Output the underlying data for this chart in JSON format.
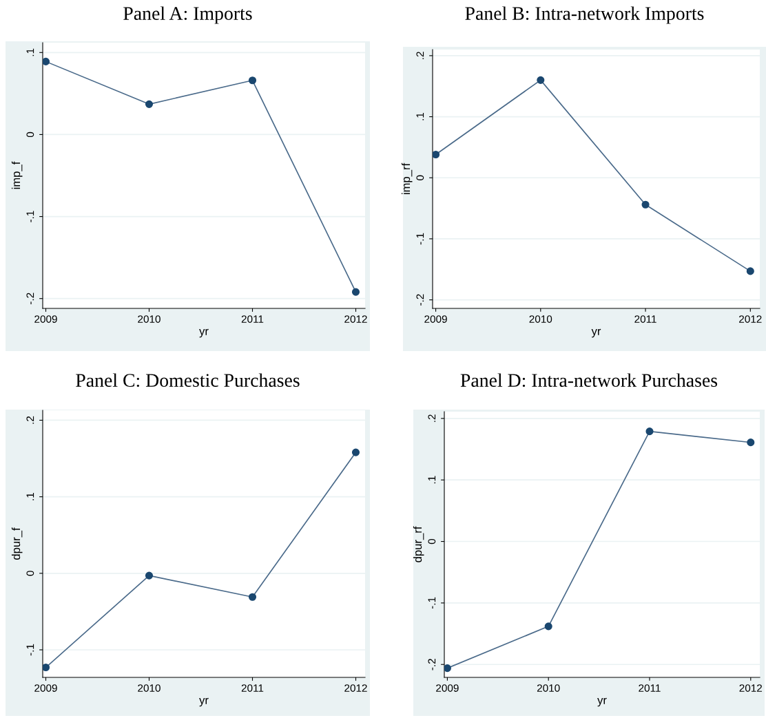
{
  "chart_data": [
    {
      "type": "line",
      "title": "Panel A: Imports",
      "xlabel": "yr",
      "ylabel": "imp_f",
      "x": [
        2009,
        2010,
        2011,
        2012
      ],
      "values": [
        0.089,
        0.037,
        0.066,
        -0.192
      ],
      "color": "#1a476f",
      "marker": "circle",
      "line_style": "solid",
      "grid": "y",
      "xlim": [
        2008.97,
        2012.09
      ],
      "ylim": [
        -0.212,
        0.112
      ],
      "xticks": [
        2009,
        2010,
        2011,
        2012
      ],
      "yticks": [
        {
          "value": -0.2,
          "label": "-.2"
        },
        {
          "value": -0.1,
          "label": "-.1"
        },
        0,
        {
          "value": 0.1,
          "label": ".1"
        }
      ]
    },
    {
      "type": "line",
      "title": "Panel B: Intra-network Imports",
      "xlabel": "yr",
      "ylabel": "imp_rf",
      "x": [
        2009,
        2010,
        2011,
        2012
      ],
      "values": [
        0.038,
        0.16,
        -0.044,
        -0.153
      ],
      "color": "#1a476f",
      "marker": "circle",
      "line_style": "solid",
      "grid": "y",
      "xlim": [
        2008.97,
        2012.09
      ],
      "ylim": [
        -0.214,
        0.21
      ],
      "xticks": [
        2009,
        2010,
        2011,
        2012
      ],
      "yticks": [
        {
          "value": -0.2,
          "label": "-.2"
        },
        {
          "value": -0.1,
          "label": "-.1"
        },
        0,
        {
          "value": 0.1,
          "label": ".1"
        },
        {
          "value": 0.2,
          "label": ".2"
        }
      ]
    },
    {
      "type": "line",
      "title": "Panel C: Domestic Purchases",
      "xlabel": "yr",
      "ylabel": "dpur_f",
      "x": [
        2009,
        2010,
        2011,
        2012
      ],
      "values": [
        -0.123,
        -0.003,
        -0.031,
        0.158
      ],
      "color": "#1a476f",
      "marker": "circle",
      "line_style": "solid",
      "grid": "y",
      "xlim": [
        2008.97,
        2012.09
      ],
      "ylim": [
        -0.136,
        0.213
      ],
      "xticks": [
        2009,
        2010,
        2011,
        2012
      ],
      "yticks": [
        {
          "value": -0.1,
          "label": "-.1"
        },
        0,
        {
          "value": 0.1,
          "label": ".1"
        },
        {
          "value": 0.2,
          "label": ".2"
        }
      ]
    },
    {
      "type": "line",
      "title": "Panel D: Intra-network Purchases",
      "xlabel": "yr",
      "ylabel": "dpur_rf",
      "x": [
        2009,
        2010,
        2011,
        2012
      ],
      "values": [
        -0.206,
        -0.138,
        0.179,
        0.161
      ],
      "color": "#1a476f",
      "marker": "circle",
      "line_style": "solid",
      "grid": "y",
      "xlim": [
        2008.97,
        2012.09
      ],
      "ylim": [
        -0.221,
        0.211
      ],
      "xticks": [
        2009,
        2010,
        2011,
        2012
      ],
      "yticks": [
        {
          "value": -0.2,
          "label": "-.2"
        },
        {
          "value": -0.1,
          "label": "-.1"
        },
        0,
        {
          "value": 0.1,
          "label": ".1"
        },
        {
          "value": 0.2,
          "label": ".2"
        }
      ]
    }
  ]
}
